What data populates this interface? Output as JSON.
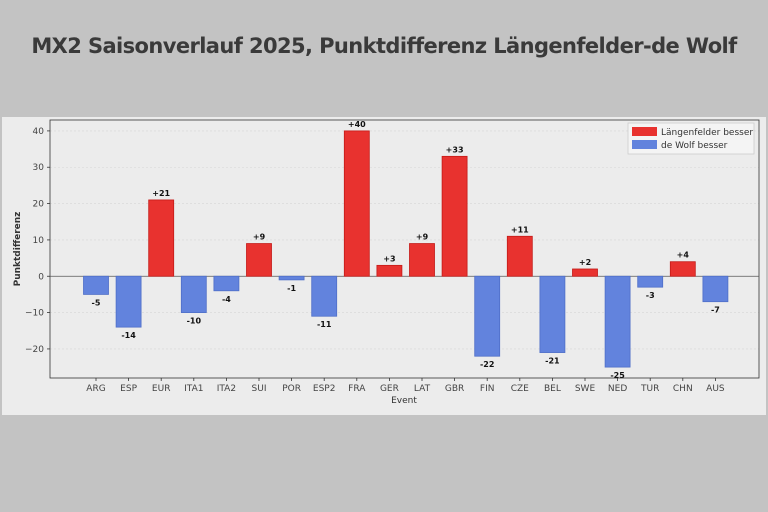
{
  "chart_data": {
    "type": "bar",
    "title": "MX2 Saisonverlauf 2025, Punktdifferenz Längenfelder-de Wolf",
    "xlabel": "Event",
    "ylabel": "Punktdifferenz",
    "categories": [
      "ARG",
      "ESP",
      "EUR",
      "ITA1",
      "ITA2",
      "SUI",
      "POR",
      "ESP2",
      "FRA",
      "GER",
      "LAT",
      "GBR",
      "FIN",
      "CZE",
      "BEL",
      "SWE",
      "NED",
      "TUR",
      "CHN",
      "AUS"
    ],
    "values": [
      -5,
      -14,
      21,
      -10,
      -4,
      9,
      -1,
      -11,
      40,
      3,
      9,
      33,
      -22,
      11,
      -21,
      2,
      -25,
      -3,
      4,
      -7
    ],
    "data_labels": [
      "-5",
      "-14",
      "+21",
      "-10",
      "-4",
      "+9",
      "-1",
      "-11",
      "+40",
      "+3",
      "+9",
      "+33",
      "-22",
      "+11",
      "-21",
      "+2",
      "-25",
      "-3",
      "+4",
      "-7"
    ],
    "ylim": [
      -28,
      43
    ],
    "yticks": [
      -20,
      -10,
      0,
      10,
      20,
      30,
      40
    ],
    "ytick_labels": [
      "−20",
      "−10",
      "0",
      "10",
      "20",
      "30",
      "40"
    ],
    "grid": true,
    "legend_position": "top-right",
    "legend": [
      {
        "label": "Längenfelder besser",
        "color": "#e8322f"
      },
      {
        "label": "de Wolf besser",
        "color": "#6283dd"
      }
    ],
    "colors": {
      "positive": "#e8322f",
      "negative": "#6283dd"
    }
  }
}
